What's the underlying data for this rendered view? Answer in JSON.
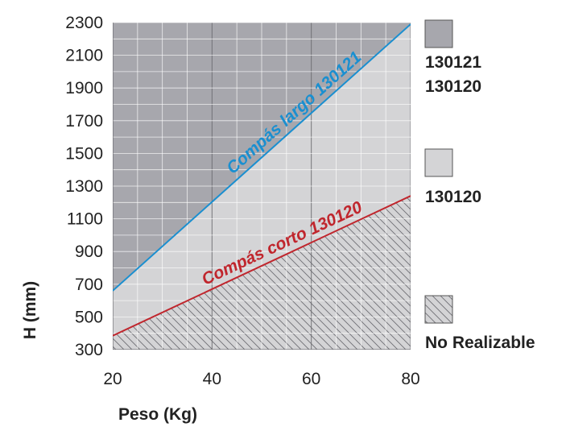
{
  "chart_data": {
    "type": "line",
    "title": "",
    "xlabel": "Peso (Kg)",
    "ylabel": "H (mm)",
    "xlim": [
      20,
      80
    ],
    "ylim": [
      300,
      2300
    ],
    "x_ticks": [
      "20",
      "40",
      "60",
      "80"
    ],
    "y_ticks": [
      "300",
      "500",
      "700",
      "900",
      "1100",
      "1300",
      "1500",
      "1700",
      "1900",
      "2100",
      "2300"
    ],
    "grid": true,
    "series": [
      {
        "name": "Compás largo 130121",
        "color": "#1a8fd0",
        "x": [
          20,
          80
        ],
        "y": [
          660,
          2290
        ]
      },
      {
        "name": "Compás corto 130120",
        "color": "#c0262d",
        "x": [
          20,
          80
        ],
        "y": [
          385,
          1240
        ]
      }
    ],
    "regions": [
      {
        "fill": "dark-grey",
        "color": "#a7a7ad",
        "labels": [
          "130121",
          "130120"
        ]
      },
      {
        "fill": "light-grey",
        "color": "#d4d4d6",
        "labels": [
          "130120"
        ]
      },
      {
        "fill": "hatched",
        "color": "#d4d4d6",
        "labels": [
          "No Realizable"
        ]
      }
    ],
    "legend_position": "right"
  }
}
